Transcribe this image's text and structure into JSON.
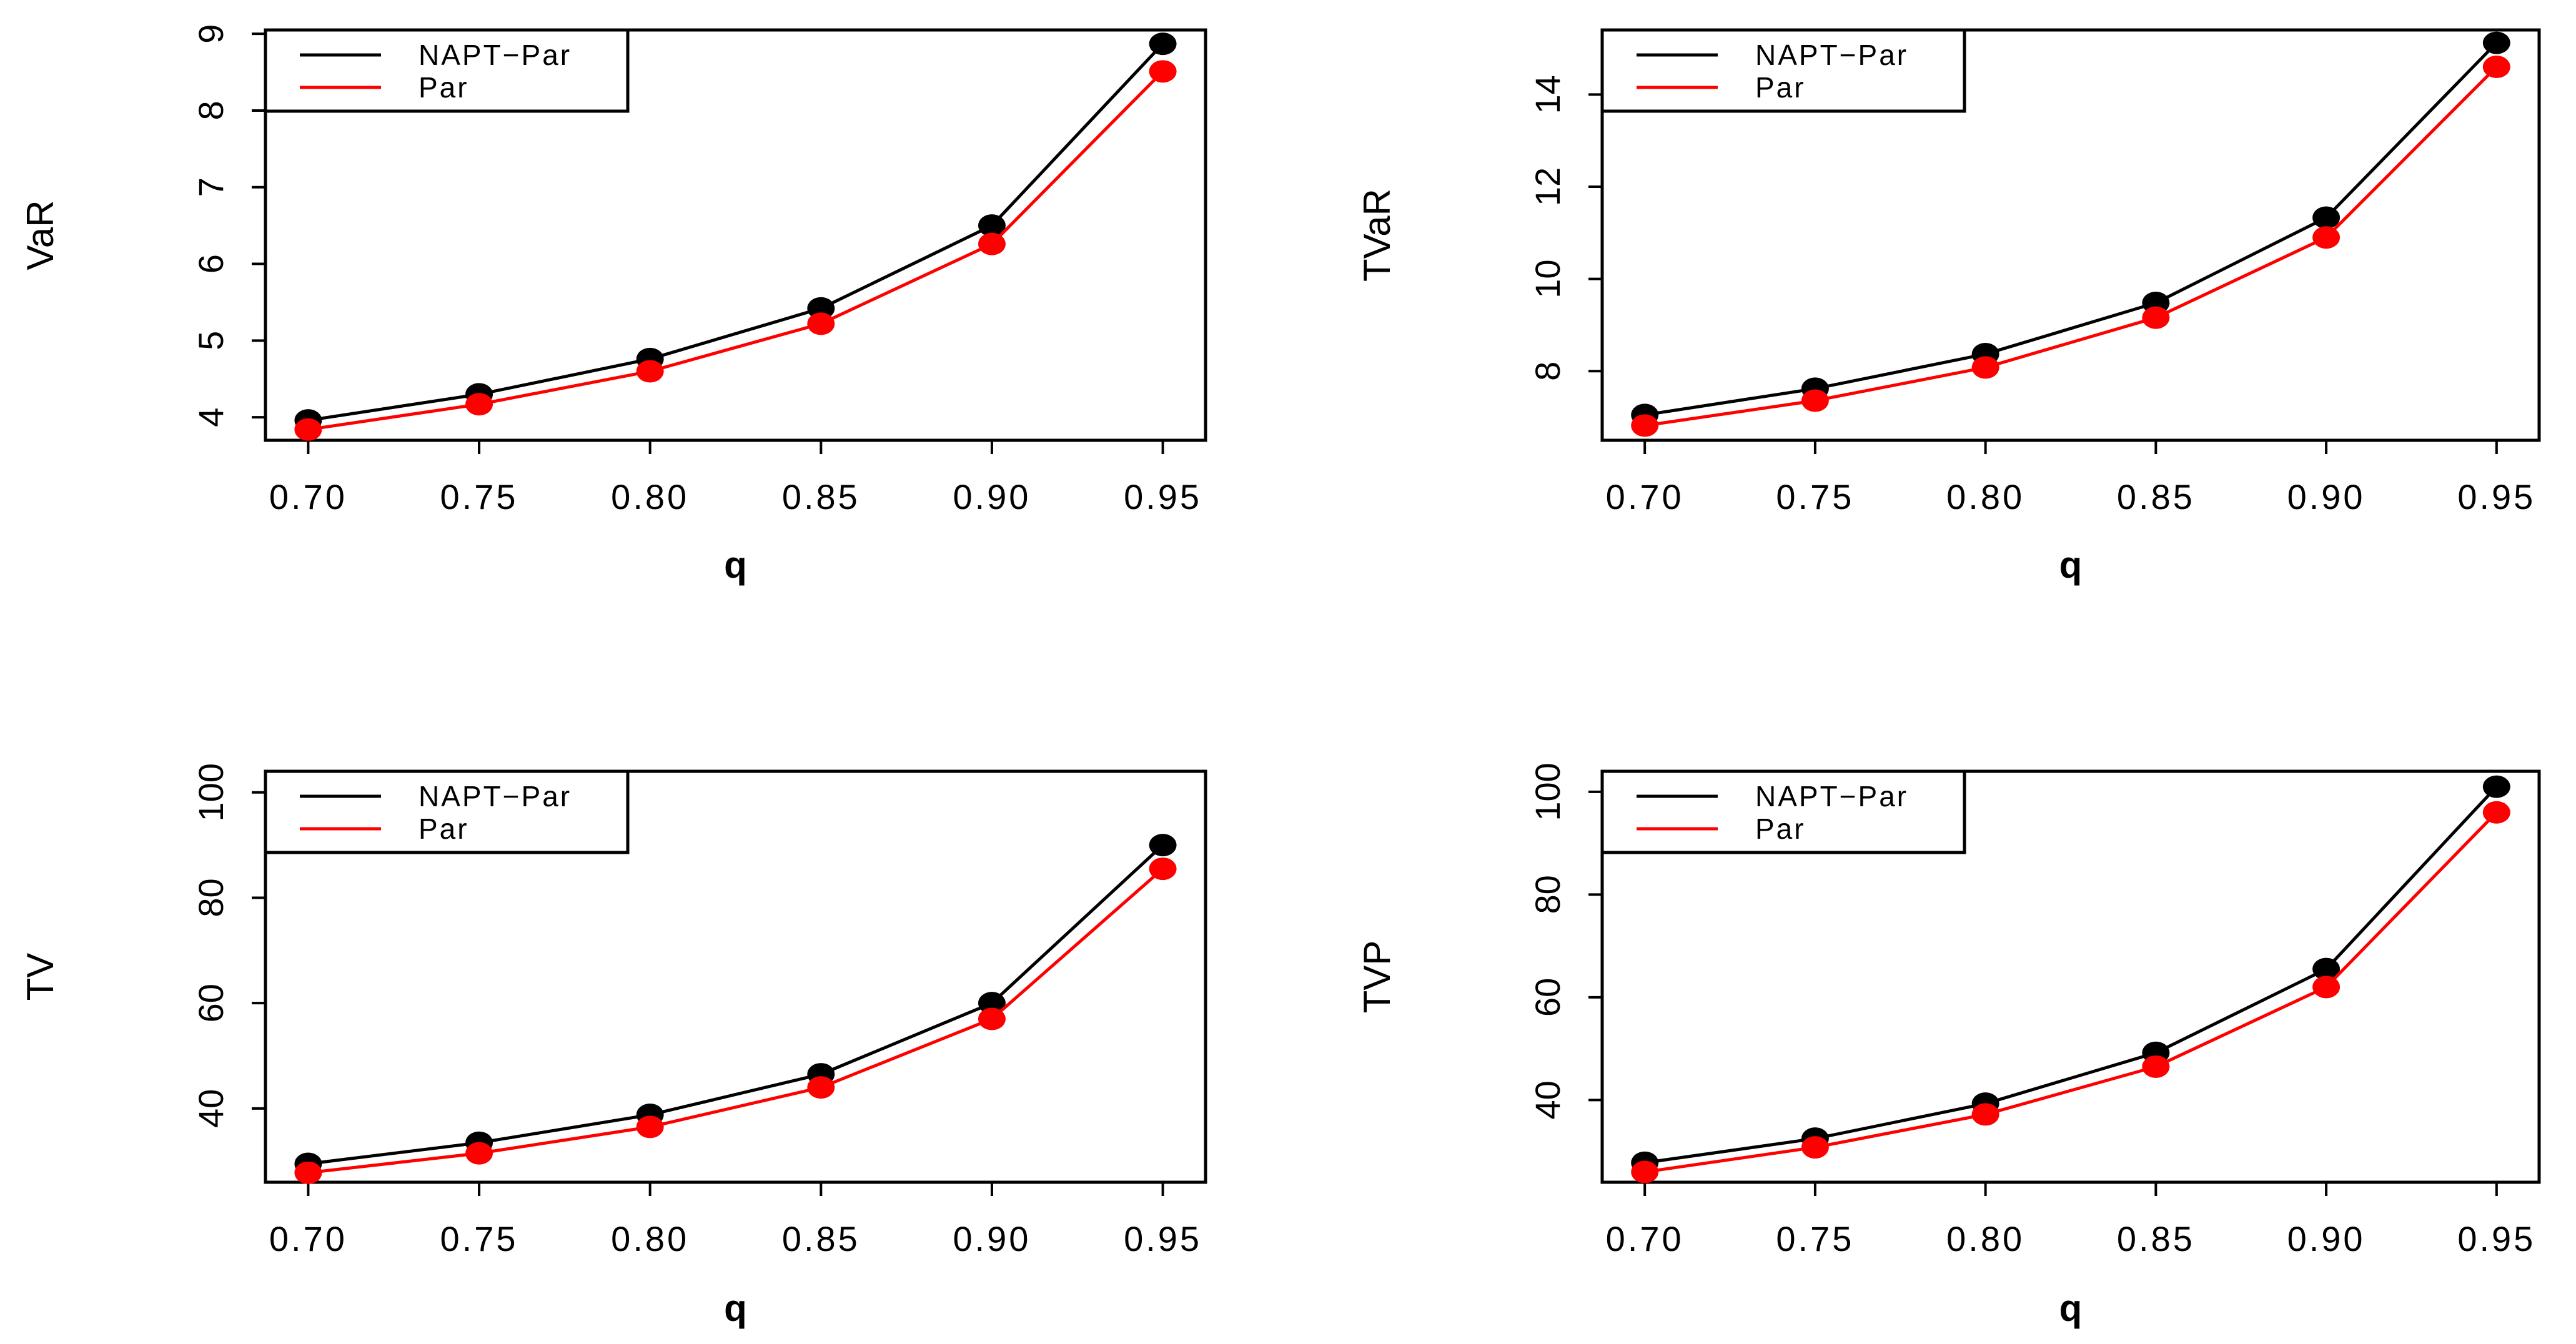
{
  "chart_data": [
    {
      "type": "line",
      "title": "",
      "xlabel": "q",
      "ylabel": "VaR",
      "x": [
        0.7,
        0.75,
        0.8,
        0.85,
        0.9,
        0.95
      ],
      "x_tick_labels": [
        "0.70",
        "0.75",
        "0.80",
        "0.85",
        "0.90",
        "0.95"
      ],
      "y_ticks": [
        4,
        5,
        6,
        7,
        8,
        9
      ],
      "y_tick_labels": [
        "4",
        "5",
        "6",
        "7",
        "8",
        "9"
      ],
      "ylim": [
        3.7,
        9.05
      ],
      "legend": [
        "NAPT−Par",
        "Par"
      ],
      "legend_position": "top-left",
      "series": [
        {
          "name": "NAPT−Par",
          "color": "#000000",
          "values": [
            3.96,
            4.3,
            4.76,
            5.42,
            6.5,
            8.87
          ]
        },
        {
          "name": "Par",
          "color": "#ff0000",
          "values": [
            3.84,
            4.17,
            4.6,
            5.22,
            6.26,
            8.51
          ]
        }
      ]
    },
    {
      "type": "line",
      "title": "",
      "xlabel": "q",
      "ylabel": "TVaR",
      "x": [
        0.7,
        0.75,
        0.8,
        0.85,
        0.9,
        0.95
      ],
      "x_tick_labels": [
        "0.70",
        "0.75",
        "0.80",
        "0.85",
        "0.90",
        "0.95"
      ],
      "y_ticks": [
        8,
        10,
        12,
        14
      ],
      "y_tick_labels": [
        "8",
        "10",
        "12",
        "14"
      ],
      "ylim": [
        6.5,
        15.4
      ],
      "legend": [
        "NAPT−Par",
        "Par"
      ],
      "legend_position": "top-left",
      "series": [
        {
          "name": "NAPT−Par",
          "color": "#000000",
          "values": [
            7.05,
            7.62,
            8.37,
            9.48,
            11.33,
            15.12
          ]
        },
        {
          "name": "Par",
          "color": "#ff0000",
          "values": [
            6.82,
            7.36,
            8.08,
            9.16,
            10.9,
            14.6
          ]
        }
      ]
    },
    {
      "type": "line",
      "title": "",
      "xlabel": "q",
      "ylabel": "TV",
      "x": [
        0.7,
        0.75,
        0.8,
        0.85,
        0.9,
        0.95
      ],
      "x_tick_labels": [
        "0.70",
        "0.75",
        "0.80",
        "0.85",
        "0.90",
        "0.95"
      ],
      "y_ticks": [
        40,
        60,
        80,
        100
      ],
      "y_tick_labels": [
        "40",
        "60",
        "80",
        "100"
      ],
      "ylim": [
        26,
        104
      ],
      "legend": [
        "NAPT−Par",
        "Par"
      ],
      "legend_position": "top-left",
      "series": [
        {
          "name": "NAPT−Par",
          "color": "#000000",
          "values": [
            29.5,
            33.5,
            38.8,
            46.5,
            60.0,
            90.0
          ]
        },
        {
          "name": "Par",
          "color": "#ff0000",
          "values": [
            27.8,
            31.5,
            36.5,
            44.0,
            57.0,
            85.5
          ]
        }
      ]
    },
    {
      "type": "line",
      "title": "",
      "xlabel": "q",
      "ylabel": "TVP",
      "x": [
        0.7,
        0.75,
        0.8,
        0.85,
        0.9,
        0.95
      ],
      "x_tick_labels": [
        "0.70",
        "0.75",
        "0.80",
        "0.85",
        "0.90",
        "0.95"
      ],
      "y_ticks": [
        40,
        60,
        80,
        100
      ],
      "y_tick_labels": [
        "40",
        "60",
        "80",
        "100"
      ],
      "ylim": [
        24,
        104
      ],
      "legend": [
        "NAPT−Par",
        "Par"
      ],
      "legend_position": "top-left",
      "series": [
        {
          "name": "NAPT−Par",
          "color": "#000000",
          "values": [
            27.8,
            32.5,
            39.3,
            49.2,
            65.5,
            101.0
          ]
        },
        {
          "name": "Par",
          "color": "#ff0000",
          "values": [
            26.0,
            30.8,
            37.2,
            46.5,
            62.0,
            96.0
          ]
        }
      ]
    }
  ]
}
